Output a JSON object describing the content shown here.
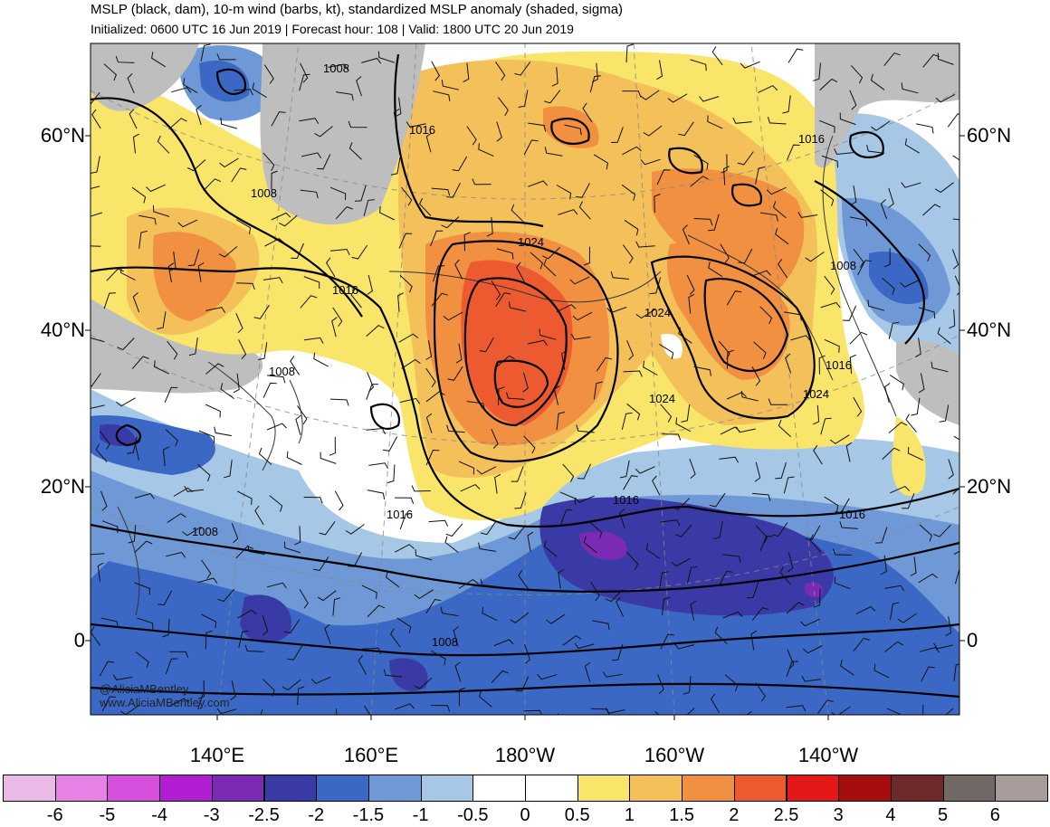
{
  "header": {
    "title": "MSLP (black, dam), 10-m wind (barbs, kt), standardized MSLP anomaly (shaded, sigma)",
    "subtitle": "Initialized: 0600 UTC 16 Jun 2019 | Forecast hour: 108 | Valid: 1800 UTC 20 Jun 2019"
  },
  "lat_labels": [
    "60°N",
    "40°N",
    "20°N",
    "0"
  ],
  "lon_labels": [
    "140°E",
    "160°E",
    "180°W",
    "160°W",
    "140°W"
  ],
  "isobar_labels": [
    "1008",
    "1008",
    "1008",
    "1008",
    "1008",
    "1008",
    "1016",
    "1016",
    "1016",
    "1016",
    "1016",
    "1016",
    "1016",
    "1024",
    "1024",
    "1024",
    "1024"
  ],
  "credit": {
    "handle": "@AliciaMBentley",
    "site": "www.AliciaMBentley.com"
  },
  "colorbar": {
    "labels": [
      "-6",
      "-5",
      "-4",
      "-3",
      "-2.5",
      "-2",
      "-1.5",
      "-1",
      "-0.5",
      "0",
      "0.5",
      "1",
      "1.5",
      "2",
      "2.5",
      "3",
      "4",
      "5",
      "6"
    ],
    "colors": [
      "#ebb9e6",
      "#e682e6",
      "#d64fdc",
      "#b21ed2",
      "#7a2ab4",
      "#3a3aa6",
      "#3a68c4",
      "#6f99d6",
      "#a6c8e6",
      "#ffffff",
      "#ffffff",
      "#f9e56a",
      "#f3c05a",
      "#f09040",
      "#ee5a30",
      "#e41818",
      "#a60e0e",
      "#6e2a2a",
      "#726866",
      "#a89c9a"
    ]
  },
  "colors": {
    "land": "#bebebe",
    "ocean_neutral": "#ffffff",
    "contour": "#000000"
  }
}
